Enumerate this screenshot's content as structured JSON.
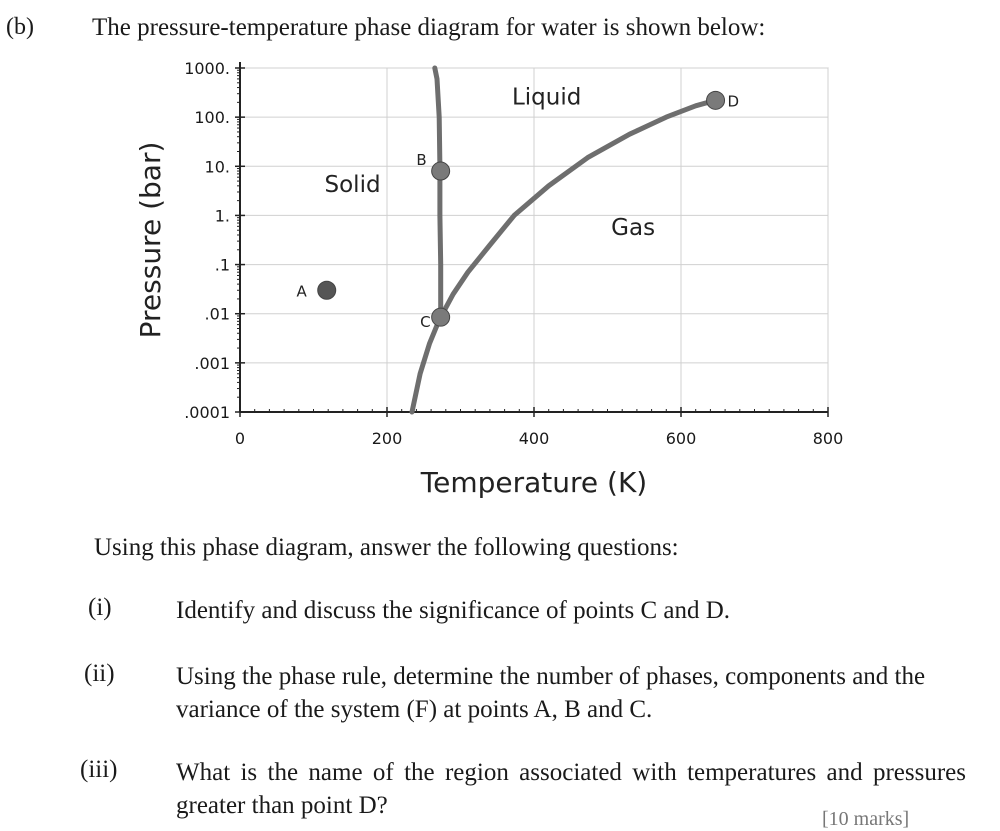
{
  "part_label": "(b)",
  "heading": "The pressure-temperature phase diagram for water is shown below:",
  "chart_data": {
    "type": "line",
    "title": "",
    "xlabel": "Temperature (K)",
    "ylabel": "Pressure (bar)",
    "xlim": [
      0,
      800
    ],
    "ylim": [
      0.0001,
      1000
    ],
    "y_scale": "log",
    "grid": true,
    "x_ticks": [
      "0",
      "200",
      "400",
      "600",
      "800"
    ],
    "y_ticks": [
      {
        "value": 1000,
        "label": "1000."
      },
      {
        "value": 100,
        "label": "100."
      },
      {
        "value": 10,
        "label": "10."
      },
      {
        "value": 1,
        "label": "1."
      },
      {
        "value": 0.1,
        "label": ".1"
      },
      {
        "value": 0.01,
        "label": ".01"
      },
      {
        "value": 0.001,
        "label": ".001"
      },
      {
        "value": 0.0001,
        "label": ".0001"
      }
    ],
    "series": [
      {
        "x": [
          234,
          245,
          258,
          268,
          273
        ],
        "y": [
          0.0001,
          0.0006,
          0.0025,
          0.0058,
          0.0085
        ]
      },
      {
        "x": [
          273,
          273,
          272,
          272,
          271,
          268,
          265
        ],
        "y": [
          0.0085,
          0.1,
          1,
          10,
          100,
          600,
          1000
        ]
      },
      {
        "x": [
          273,
          290,
          310,
          340,
          373,
          420,
          473,
          530,
          580,
          620,
          647
        ],
        "y": [
          0.0085,
          0.025,
          0.07,
          0.25,
          1.0,
          4,
          15,
          45,
          100,
          170,
          220
        ]
      }
    ],
    "regions": [
      {
        "label": "Solid",
        "x": 115,
        "y": 3
      },
      {
        "label": "Liquid",
        "x": 370,
        "y": 180
      },
      {
        "label": "Gas",
        "x": 505,
        "y": 0.4
      }
    ],
    "points": [
      {
        "label": "A",
        "x": 118,
        "y": 0.03
      },
      {
        "label": "B",
        "x": 273,
        "y": 8
      },
      {
        "label": "C",
        "x": 273,
        "y": 0.0085
      },
      {
        "label": "D",
        "x": 647,
        "y": 220
      }
    ]
  },
  "intro": "Using this phase diagram, answer the following questions:",
  "questions": [
    {
      "num": "(i)",
      "text": "Identify and discuss the significance of points C and D."
    },
    {
      "num": "(ii)",
      "text": "Using the phase rule, determine the number of phases, components and the variance of the system (F) at points A, B and C."
    },
    {
      "num": "(iii)",
      "text": "What is the name of the region associated with temperatures and pressures greater than point D?"
    }
  ],
  "marks": "[10 marks]",
  "colors": {
    "curve": "#6e6e6e",
    "point": "#7a7a7a",
    "point_a": "#555555",
    "axis": "#222222",
    "grid": "#d0d0d0"
  }
}
